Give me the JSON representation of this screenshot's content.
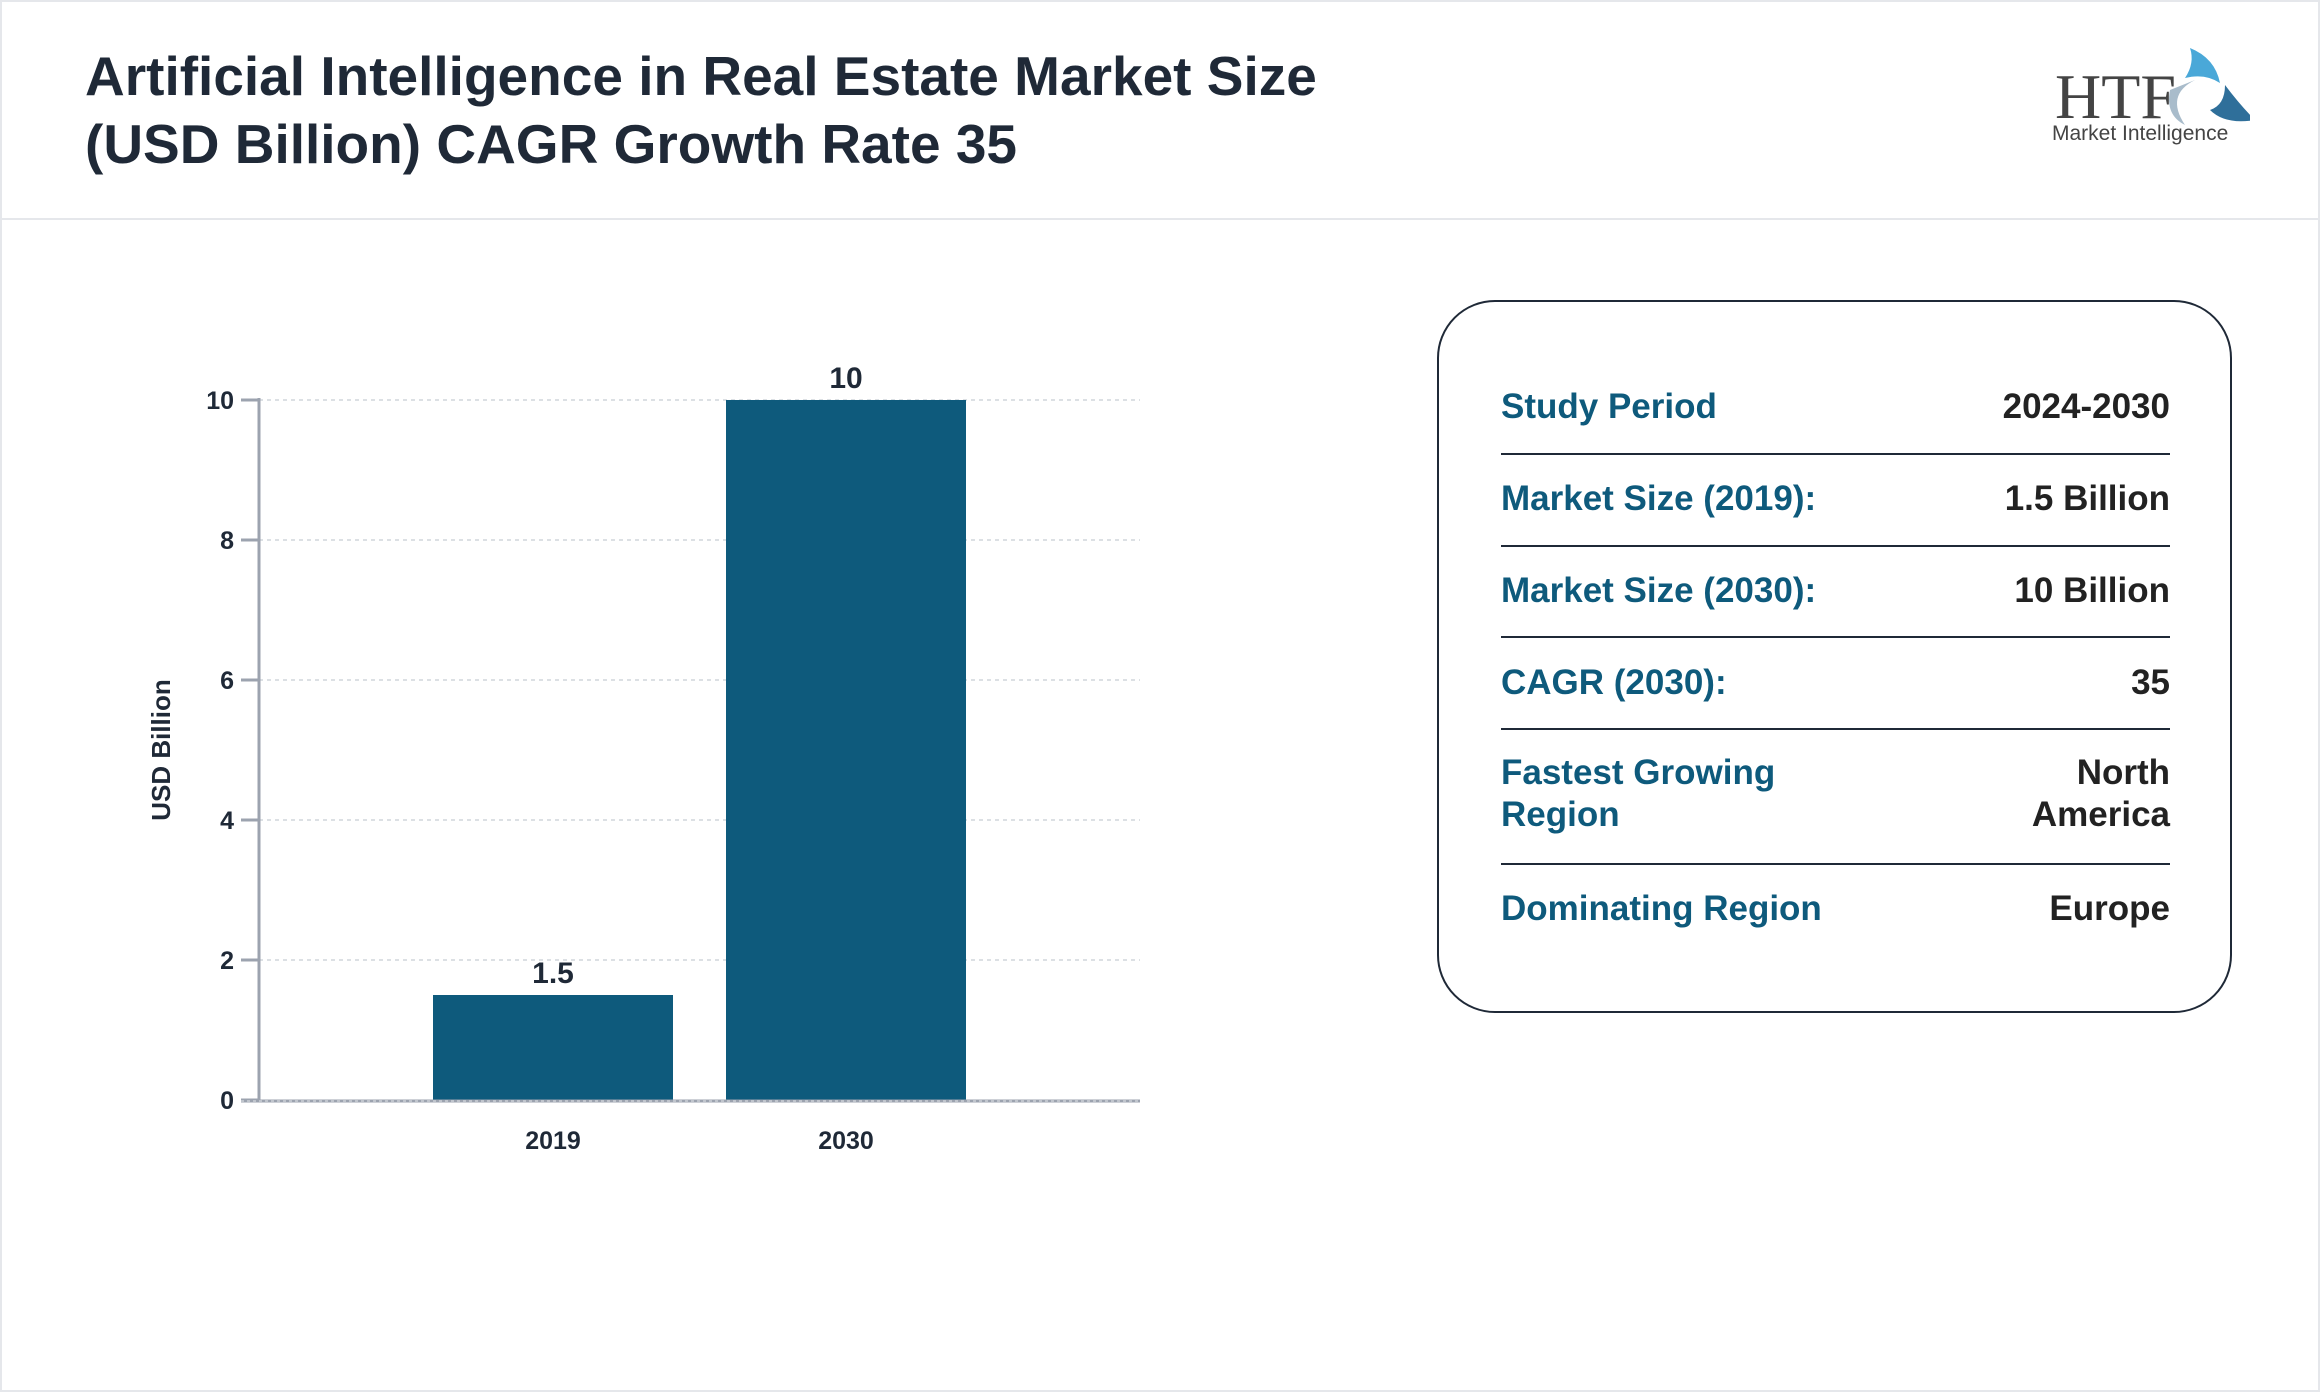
{
  "title_line1": "Artificial Intelligence in Real Estate Market Size",
  "title_line2": "(USD Billion) CAGR Growth Rate 35",
  "logo": {
    "text": "HTF",
    "subtitle": "Market Intelligence"
  },
  "colors": {
    "bar": "#0e5a7c",
    "label": "#0e5a7c",
    "text": "#1f2937",
    "axis": "#9ca3af"
  },
  "chart_data": {
    "type": "bar",
    "categories": [
      "2019",
      "2030"
    ],
    "values": [
      1.5,
      10
    ],
    "data_labels": [
      "1.5",
      "10"
    ],
    "title": "",
    "xlabel": "",
    "ylabel": "USD Billion",
    "ylim": [
      0,
      10
    ],
    "yticks": [
      "0",
      "2",
      "4",
      "6",
      "8",
      "10"
    ],
    "grid": true
  },
  "info": [
    {
      "label": "Study Period",
      "value": "2024-2030"
    },
    {
      "label": "Market Size (2019):",
      "value": "1.5 Billion"
    },
    {
      "label": "Market Size (2030):",
      "value": "10 Billion"
    },
    {
      "label": "CAGR (2030):",
      "value": "35"
    },
    {
      "label": "Fastest Growing Region",
      "value": "North America"
    },
    {
      "label": "Dominating Region",
      "value": "Europe"
    }
  ]
}
